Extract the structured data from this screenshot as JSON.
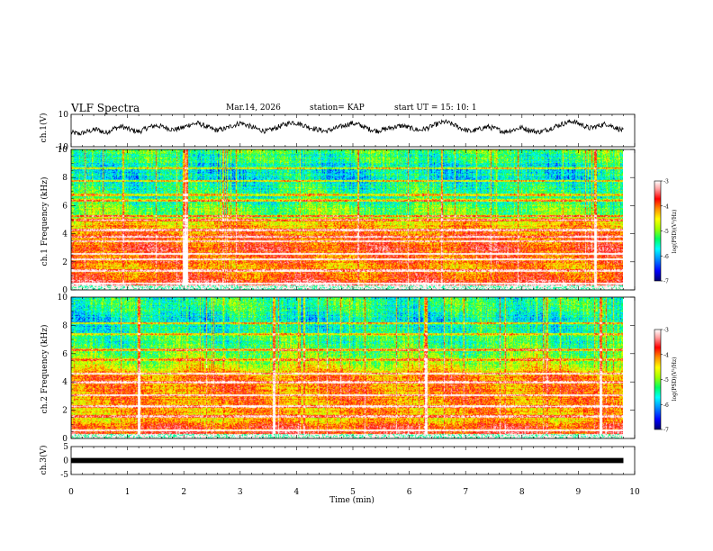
{
  "header": {
    "title": "VLF Spectra",
    "date": "Mar.14, 2026",
    "station": "station= KAP",
    "start": "start UT =   15: 10: 1"
  },
  "colors": {
    "spectrum": [
      "#000070",
      "#0000ff",
      "#0090ff",
      "#00ffff",
      "#00ff60",
      "#a0ff00",
      "#ffff00",
      "#ff9000",
      "#ff0000",
      "#ffa0a0",
      "#ffffff"
    ],
    "trace": "#000000"
  },
  "chart_data": [
    {
      "type": "line",
      "name": "ch1-waveform",
      "ylabel": "ch.1(V)",
      "ylim": [
        -10,
        10
      ],
      "y_ticks": [
        "10",
        "-10"
      ],
      "xlim": [
        0,
        10
      ],
      "description_values": "noisy voltage trace, mostly between -4 and +6 V",
      "series": [
        {
          "name": "ch.1",
          "x_end": 9.8,
          "y": [
            -1.2,
            -2.0,
            -0.5,
            0.8,
            -1.5,
            1.2,
            2.5,
            0.4,
            -0.8,
            1.8,
            3.2,
            2.0,
            0.5,
            1.5,
            3.8,
            4.5,
            2.2,
            0.2,
            1.0,
            3.0,
            4.8,
            2.6,
            0.8,
            -0.5,
            1.4,
            3.5,
            5.2,
            4.0,
            2.1,
            0.6,
            -0.4,
            1.2,
            2.8,
            4.6,
            3.4,
            1.0,
            -0.2,
            0.9,
            2.2,
            3.0,
            1.4,
            0.2,
            1.6,
            3.9,
            5.4,
            3.6,
            1.2,
            -0.6,
            0.8,
            2.4,
            1.0,
            -0.8,
            0.4,
            1.8,
            0.2,
            -1.0,
            0.5,
            2.6,
            4.4,
            5.8,
            3.8,
            1.4,
            2.8,
            4.2,
            2.0,
            -0.2
          ]
        }
      ]
    },
    {
      "type": "heatmap",
      "name": "ch1-spectrogram",
      "ylabel": "ch.1 Frequency (kHz)",
      "ylim": [
        0,
        10
      ],
      "y_ticks": [
        "0",
        "2",
        "4",
        "6",
        "8",
        "10"
      ],
      "xlim": [
        0,
        9.8
      ],
      "colorbar": {
        "label": "log(PSD)(V²/Hz)",
        "range": [
          -7,
          -3
        ],
        "ticks": [
          "-3",
          "-4",
          "-5",
          "-6",
          "-7"
        ]
      },
      "band_profile_khz": [
        0.25,
        1.5,
        3.0,
        4.5,
        5.5,
        7.0,
        8.5,
        9.5
      ],
      "band_profile_logpsd": [
        -3.5,
        -4.2,
        -3.9,
        -4.3,
        -5.1,
        -5.5,
        -5.8,
        -5.4
      ],
      "horizontal_lines_khz": [
        0.5,
        1.4,
        2.2,
        2.6,
        3.5,
        3.8,
        4.3,
        5.0,
        5.3,
        6.4,
        6.8,
        7.8,
        8.7
      ],
      "vertical_events_min": [
        2.0,
        2.05,
        9.3
      ]
    },
    {
      "type": "heatmap",
      "name": "ch2-spectrogram",
      "ylabel": "ch.2 Frequency (kHz)",
      "ylim": [
        0,
        10
      ],
      "y_ticks": [
        "0",
        "2",
        "4",
        "6",
        "8",
        "10"
      ],
      "xlim": [
        0,
        9.8
      ],
      "colorbar": {
        "label": "log(PSD)(V²/Hz)",
        "range": [
          -7,
          -3
        ],
        "ticks": [
          "-3",
          "-4",
          "-5",
          "-6",
          "-7"
        ]
      },
      "band_profile_khz": [
        0.25,
        1.5,
        3.0,
        4.5,
        5.5,
        7.0,
        8.5,
        9.5
      ],
      "band_profile_logpsd": [
        -3.6,
        -4.4,
        -4.1,
        -4.2,
        -5.0,
        -5.4,
        -5.7,
        -5.5
      ],
      "horizontal_lines_khz": [
        0.6,
        1.6,
        2.3,
        3.1,
        4.0,
        4.6,
        5.6,
        6.3,
        7.4,
        8.2
      ],
      "vertical_events_min": [
        1.2,
        3.6,
        6.3,
        9.4
      ]
    },
    {
      "type": "line",
      "name": "ch3-waveform",
      "ylabel": "ch.3(V)",
      "ylim": [
        -5,
        5
      ],
      "y_ticks": [
        "5",
        "0",
        "-5"
      ],
      "xlim": [
        0,
        10
      ],
      "series": [
        {
          "name": "ch.3",
          "x_end": 9.8,
          "y_band": [
            -0.6,
            0.6
          ]
        }
      ],
      "x_axis": {
        "label": "Time (min)",
        "ticks": [
          "0",
          "1",
          "2",
          "3",
          "4",
          "5",
          "6",
          "7",
          "8",
          "9",
          "10"
        ]
      }
    }
  ]
}
